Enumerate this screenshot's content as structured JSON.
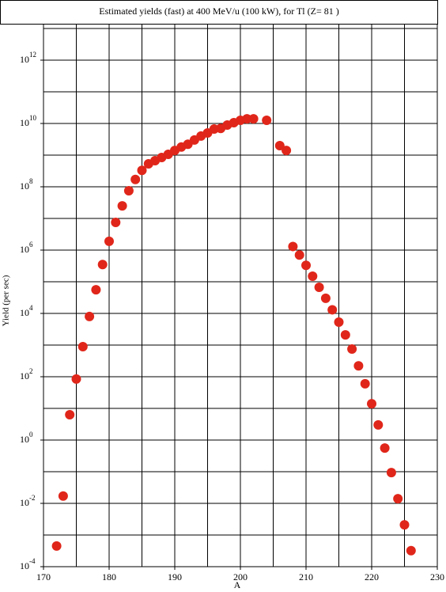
{
  "chart_data": {
    "type": "scatter",
    "title": "Estimated yields (fast) at 400 MeV/u (100 kW), for Tl (Z= 81 )",
    "x_label": "A",
    "y_label": "Yield (per sec)",
    "log_y": true,
    "color": "#e0261a",
    "xlim": [
      170,
      230
    ],
    "xticks": [
      170,
      180,
      190,
      200,
      210,
      220,
      230
    ],
    "x_grid_lines": [
      170,
      175,
      180,
      185,
      190,
      195,
      200,
      205,
      210,
      215,
      220,
      225,
      230
    ],
    "ylim": [
      0.0001,
      10000000000000
    ],
    "yticks": [
      {
        "value": 0.0001,
        "label": "10",
        "exponent": "-4"
      },
      {
        "value": 0.01,
        "label": "10",
        "exponent": "-2"
      },
      {
        "value": 1,
        "label": "10",
        "exponent": "0"
      },
      {
        "value": 100,
        "label": "10",
        "exponent": "2"
      },
      {
        "value": 10000,
        "label": "10",
        "exponent": "4"
      },
      {
        "value": 1000000,
        "label": "10",
        "exponent": "6"
      },
      {
        "value": 100000000,
        "label": "10",
        "exponent": "8"
      },
      {
        "value": 10000000000,
        "label": "10",
        "exponent": "10"
      },
      {
        "value": 1000000000000,
        "label": "10",
        "exponent": "12"
      }
    ],
    "y_grid_lines": [
      0.0001,
      0.001,
      0.01,
      0.1,
      1,
      10,
      100,
      1000,
      10000,
      100000,
      1000000,
      10000000,
      100000000,
      1000000000,
      10000000000,
      100000000000,
      1000000000000,
      10000000000000
    ],
    "x": [
      172,
      173,
      174,
      175,
      176,
      177,
      178,
      179,
      180,
      181,
      182,
      183,
      184,
      185,
      186,
      187,
      188,
      189,
      190,
      191,
      192,
      193,
      194,
      195,
      196,
      197,
      198,
      199,
      200,
      201,
      202,
      204,
      206,
      207,
      208,
      209,
      210,
      211,
      212,
      213,
      214,
      215,
      216,
      217,
      218,
      219,
      220,
      221,
      222,
      223,
      224,
      225,
      226
    ],
    "values": [
      0.00045,
      0.017,
      6.3,
      85,
      890,
      8000,
      56000,
      350000,
      1900000,
      7500000,
      25000000,
      75000000,
      170000000,
      330000000,
      530000000,
      670000000,
      840000000,
      1060000000,
      1400000000,
      1800000000,
      2200000000,
      3000000000,
      4000000000,
      5000000000,
      6700000000,
      7000000000,
      8900000000,
      10600000000,
      12600000000,
      14000000000,
      14000000000,
      12600000000,
      2000000000,
      1400000000,
      1300000,
      700000,
      330000,
      150000,
      67000,
      30000,
      13000,
      5300,
      2100,
      750,
      220,
      60,
      14,
      3,
      0.56,
      0.094,
      0.014,
      0.0021,
      0.00032
    ]
  }
}
